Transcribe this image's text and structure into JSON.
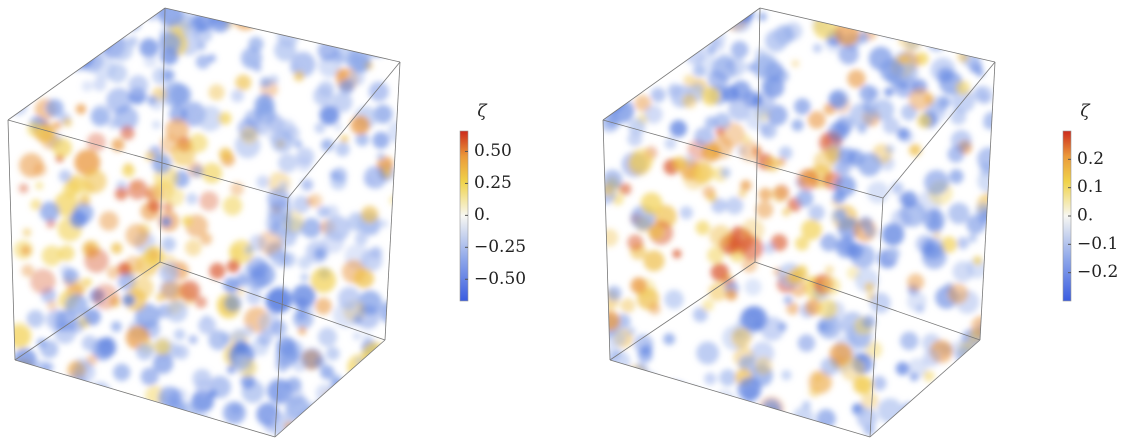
{
  "panels": [
    {
      "colorbar": {
        "label": "ζ",
        "lim": [
          -0.67,
          0.66
        ],
        "ticks": [
          {
            "value": 0.5,
            "label": "0.50"
          },
          {
            "value": 0.25,
            "label": "0.25"
          },
          {
            "value": 0,
            "label": "0."
          },
          {
            "value": -0.25,
            "label": "−0.25"
          },
          {
            "value": -0.5,
            "label": "−0.50"
          }
        ]
      }
    },
    {
      "colorbar": {
        "label": "ζ",
        "lim": [
          -0.3,
          0.3
        ],
        "ticks": [
          {
            "value": 0.2,
            "label": "0.2"
          },
          {
            "value": 0.1,
            "label": "0.1"
          },
          {
            "value": 0,
            "label": "0."
          },
          {
            "value": -0.1,
            "label": "−0.1"
          },
          {
            "value": -0.2,
            "label": "−0.2"
          }
        ]
      }
    }
  ]
}
